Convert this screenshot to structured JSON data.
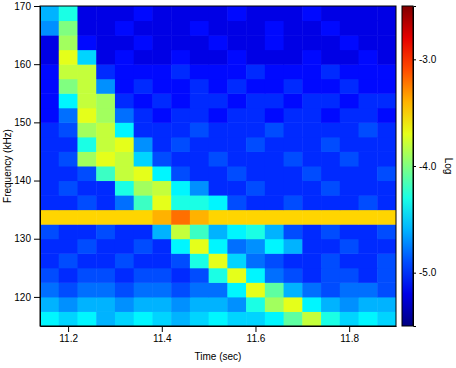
{
  "chart_data": {
    "type": "heatmap",
    "x_label": "Time (sec)",
    "y_label": "Frequency (kHz)",
    "x": [
      11.16,
      11.2,
      11.24,
      11.28,
      11.32,
      11.36,
      11.4,
      11.44,
      11.48,
      11.52,
      11.56,
      11.6,
      11.64,
      11.68,
      11.72,
      11.76,
      11.8,
      11.84,
      11.88
    ],
    "y": [
      116.25,
      118.75,
      121.25,
      123.75,
      126.25,
      128.75,
      131.25,
      133.75,
      136.25,
      138.75,
      141.25,
      143.75,
      146.25,
      148.75,
      151.25,
      153.75,
      156.25,
      158.75,
      161.25,
      163.75,
      166.25,
      168.75
    ],
    "values": [
      [
        -4.4,
        -4.5,
        -4.4,
        -4.6,
        -4.5,
        -4.4,
        -4.5,
        -4.6,
        -4.5,
        -4.4,
        -4.5,
        -4.5,
        -4.4,
        -4.1,
        -3.8,
        -4.3,
        -4.5,
        -4.4,
        -4.5
      ],
      [
        -4.6,
        -4.7,
        -4.6,
        -4.6,
        -4.7,
        -4.6,
        -4.6,
        -4.7,
        -4.6,
        -4.6,
        -4.7,
        -4.3,
        -3.9,
        -3.7,
        -4.4,
        -4.6,
        -4.7,
        -4.6,
        -4.6
      ],
      [
        -4.8,
        -4.9,
        -4.8,
        -4.8,
        -4.9,
        -4.8,
        -4.8,
        -4.9,
        -4.8,
        -4.8,
        -4.4,
        -3.7,
        -4.1,
        -4.6,
        -4.8,
        -4.9,
        -4.8,
        -4.8,
        -4.9
      ],
      [
        -4.9,
        -5.0,
        -4.9,
        -4.9,
        -5.0,
        -4.9,
        -4.9,
        -5.0,
        -4.9,
        -4.3,
        -3.7,
        -4.4,
        -4.8,
        -4.9,
        -5.0,
        -4.9,
        -4.9,
        -5.0,
        -4.9
      ],
      [
        -5.0,
        -4.9,
        -5.0,
        -5.0,
        -4.9,
        -5.0,
        -5.0,
        -4.9,
        -4.3,
        -3.7,
        -4.5,
        -4.8,
        -4.9,
        -5.0,
        -5.0,
        -4.9,
        -5.0,
        -5.0,
        -4.9
      ],
      [
        -5.0,
        -5.0,
        -4.9,
        -5.0,
        -5.0,
        -4.9,
        -5.0,
        -4.4,
        -3.7,
        -4.4,
        -4.8,
        -4.7,
        -4.4,
        -4.6,
        -5.0,
        -5.0,
        -4.9,
        -5.0,
        -5.0
      ],
      [
        -4.9,
        -5.0,
        -5.0,
        -4.9,
        -5.0,
        -5.0,
        -4.6,
        -3.8,
        -4.2,
        -4.6,
        -4.4,
        -4.3,
        -4.6,
        -4.9,
        -5.0,
        -4.9,
        -5.0,
        -5.0,
        -4.9
      ],
      [
        -3.5,
        -3.5,
        -3.5,
        -3.5,
        -3.5,
        -3.5,
        -3.4,
        -3.2,
        -3.4,
        -3.5,
        -3.5,
        -3.5,
        -3.5,
        -3.5,
        -3.5,
        -3.5,
        -3.5,
        -3.5,
        -3.5
      ],
      [
        -5.0,
        -5.0,
        -4.9,
        -5.0,
        -4.8,
        -4.2,
        -3.7,
        -4.3,
        -4.3,
        -4.4,
        -4.9,
        -5.0,
        -5.0,
        -4.9,
        -5.0,
        -5.0,
        -5.0,
        -4.9,
        -5.0
      ],
      [
        -5.0,
        -4.9,
        -5.0,
        -5.0,
        -4.3,
        -3.9,
        -3.8,
        -4.4,
        -4.7,
        -5.0,
        -5.0,
        -4.9,
        -5.0,
        -5.0,
        -5.0,
        -4.9,
        -5.0,
        -5.0,
        -5.0
      ],
      [
        -5.0,
        -5.0,
        -4.9,
        -4.2,
        -3.8,
        -3.7,
        -4.4,
        -4.9,
        -5.0,
        -5.0,
        -4.9,
        -5.0,
        -5.0,
        -5.0,
        -4.9,
        -5.0,
        -5.0,
        -5.0,
        -4.9
      ],
      [
        -5.0,
        -4.9,
        -3.9,
        -3.7,
        -3.8,
        -4.5,
        -4.9,
        -5.0,
        -5.0,
        -4.9,
        -5.0,
        -5.0,
        -5.0,
        -4.9,
        -5.0,
        -5.0,
        -4.9,
        -5.0,
        -5.0
      ],
      [
        -5.0,
        -5.0,
        -4.3,
        -3.8,
        -3.7,
        -4.7,
        -5.0,
        -4.9,
        -5.0,
        -5.0,
        -5.0,
        -4.9,
        -5.0,
        -5.0,
        -5.0,
        -4.9,
        -5.0,
        -5.0,
        -5.0
      ],
      [
        -5.0,
        -4.9,
        -3.9,
        -3.8,
        -4.4,
        -5.0,
        -5.0,
        -5.0,
        -4.9,
        -5.0,
        -5.0,
        -5.0,
        -4.9,
        -5.0,
        -5.0,
        -5.0,
        -5.0,
        -4.9,
        -5.0
      ],
      [
        -5.1,
        -4.8,
        -3.7,
        -3.9,
        -4.8,
        -5.0,
        -5.1,
        -5.0,
        -5.0,
        -5.1,
        -5.0,
        -5.0,
        -5.1,
        -5.0,
        -5.0,
        -5.1,
        -5.0,
        -5.0,
        -5.1
      ],
      [
        -5.1,
        -4.4,
        -3.8,
        -3.9,
        -5.0,
        -5.1,
        -5.0,
        -5.1,
        -5.0,
        -5.0,
        -5.1,
        -5.0,
        -5.0,
        -5.1,
        -5.0,
        -5.0,
        -5.1,
        -5.0,
        -5.0
      ],
      [
        -5.1,
        -4.0,
        -3.8,
        -4.7,
        -5.1,
        -5.0,
        -5.1,
        -5.1,
        -5.0,
        -5.1,
        -5.0,
        -5.1,
        -5.1,
        -5.0,
        -5.1,
        -5.1,
        -5.0,
        -5.1,
        -5.1
      ],
      [
        -5.1,
        -3.8,
        -3.8,
        -5.0,
        -5.1,
        -5.1,
        -5.1,
        -5.0,
        -5.1,
        -5.1,
        -5.1,
        -5.0,
        -5.1,
        -5.1,
        -5.1,
        -5.0,
        -5.1,
        -5.1,
        -5.1
      ],
      [
        -5.2,
        -3.7,
        -4.5,
        -5.2,
        -5.1,
        -5.2,
        -5.2,
        -5.1,
        -5.2,
        -5.2,
        -5.1,
        -5.2,
        -5.2,
        -5.2,
        -5.1,
        -5.2,
        -5.2,
        -5.1,
        -5.2
      ],
      [
        -5.2,
        -3.9,
        -5.1,
        -5.2,
        -5.2,
        -5.1,
        -5.2,
        -5.2,
        -5.2,
        -5.1,
        -5.2,
        -5.2,
        -5.1,
        -5.2,
        -5.2,
        -5.2,
        -5.1,
        -5.2,
        -5.2
      ],
      [
        -4.7,
        -4.0,
        -5.2,
        -5.2,
        -5.1,
        -5.2,
        -5.2,
        -5.2,
        -5.1,
        -5.2,
        -5.2,
        -5.2,
        -5.1,
        -5.2,
        -5.2,
        -5.1,
        -5.2,
        -5.2,
        -5.2
      ],
      [
        -4.6,
        -4.3,
        -5.2,
        -5.2,
        -5.2,
        -5.1,
        -5.2,
        -5.2,
        -5.2,
        -5.2,
        -5.1,
        -5.2,
        -5.2,
        -5.2,
        -5.1,
        -5.2,
        -5.2,
        -5.2,
        -5.2
      ]
    ],
    "xlim": [
      11.14,
      11.9
    ],
    "ylim": [
      115,
      170
    ],
    "xticks": [
      11.2,
      11.4,
      11.6,
      11.8
    ],
    "yticks": [
      120,
      130,
      140,
      150,
      160,
      170
    ],
    "colorbar": {
      "label": "Log",
      "range": [
        -5.5,
        -2.5
      ],
      "ticks": [
        {
          "value": -3,
          "label": "-3.0"
        },
        {
          "value": -4,
          "label": "-4.0"
        },
        {
          "value": -5,
          "label": "-5.0"
        }
      ]
    }
  }
}
